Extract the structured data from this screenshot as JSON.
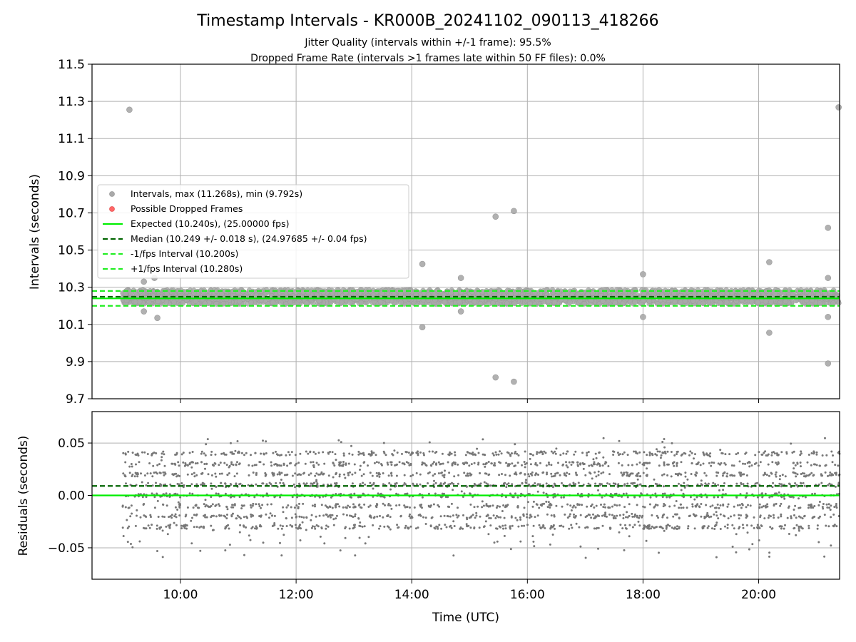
{
  "title": "Timestamp Intervals - KR000B_20241102_090113_418266",
  "subtitle_1": "Jitter Quality (intervals within +/-1 frame): 95.5%",
  "subtitle_2": "Dropped Frame Rate (intervals >1 frames late within 50 FF files): 0.0%",
  "chart_data": [
    {
      "type": "scatter",
      "panel": "top",
      "ylabel": "Intervals (seconds)",
      "ylim": [
        9.7,
        11.5
      ],
      "yticks": [
        "11.5",
        "11.3",
        "11.1",
        "10.9",
        "10.7",
        "10.5",
        "10.3",
        "10.1",
        "9.9",
        "9.7"
      ],
      "xlim_hours": [
        8.47,
        21.4
      ],
      "grid": true,
      "legend_position": "center-left",
      "legend": [
        "Intervals, max (11.268s), min (9.792s)",
        "Possible Dropped Frames",
        "Expected (10.240s), (25.00000 fps)",
        "Median (10.249 +/- 0.018 s), (24.97685 +/- 0.04 fps)",
        "-1/fps Interval (10.200s)",
        "+1/fps Interval (10.280s)"
      ],
      "reference_lines": {
        "expected": 10.24,
        "median": 10.249,
        "minus_one_fps": 10.2,
        "plus_one_fps": 10.28
      },
      "band": {
        "x_from": "09:00",
        "x_to": "21:24",
        "y_low": 10.21,
        "y_high": 10.285
      },
      "outliers": [
        {
          "t": "09:07",
          "y": 11.255
        },
        {
          "t": "21:23",
          "y": 11.268
        },
        {
          "t": "09:22",
          "y": 10.33
        },
        {
          "t": "09:33",
          "y": 10.35
        },
        {
          "t": "09:22",
          "y": 10.17
        },
        {
          "t": "09:36",
          "y": 10.135
        },
        {
          "t": "14:11",
          "y": 10.425
        },
        {
          "t": "14:11",
          "y": 10.085
        },
        {
          "t": "14:51",
          "y": 10.35
        },
        {
          "t": "14:51",
          "y": 10.17
        },
        {
          "t": "15:27",
          "y": 10.68
        },
        {
          "t": "15:27",
          "y": 9.815
        },
        {
          "t": "15:46",
          "y": 10.71
        },
        {
          "t": "15:46",
          "y": 9.792
        },
        {
          "t": "18:00",
          "y": 10.37
        },
        {
          "t": "18:00",
          "y": 10.14
        },
        {
          "t": "20:11",
          "y": 10.435
        },
        {
          "t": "20:11",
          "y": 10.055
        },
        {
          "t": "21:12",
          "y": 10.62
        },
        {
          "t": "21:12",
          "y": 10.35
        },
        {
          "t": "21:12",
          "y": 10.14
        },
        {
          "t": "21:12",
          "y": 9.89
        }
      ],
      "colors": {
        "points": "#a9a9a9",
        "dropped": "#ff4d4d",
        "expected": "#00ee00",
        "median": "#006400",
        "bounds": "#22ee22"
      }
    },
    {
      "type": "scatter",
      "panel": "bottom",
      "ylabel": "Residuals (seconds)",
      "xlabel": "Time (UTC)",
      "ylim": [
        -0.08,
        0.08
      ],
      "yticks": [
        "0.05",
        "0.00",
        "−0.05"
      ],
      "xticks": [
        "10:00",
        "12:00",
        "14:00",
        "16:00",
        "18:00",
        "20:00"
      ],
      "xlim_hours": [
        8.47,
        21.4
      ],
      "grid": true,
      "reference_lines": {
        "zero": 0.0,
        "median_offset": 0.009
      },
      "residual_levels": [
        -0.03,
        -0.02,
        -0.01,
        0.0,
        0.01,
        0.02,
        0.03,
        0.04
      ],
      "residual_range": [
        -0.07,
        0.06
      ],
      "colors": {
        "points": "#777777",
        "zero": "#00ee00",
        "median": "#006400"
      }
    }
  ]
}
